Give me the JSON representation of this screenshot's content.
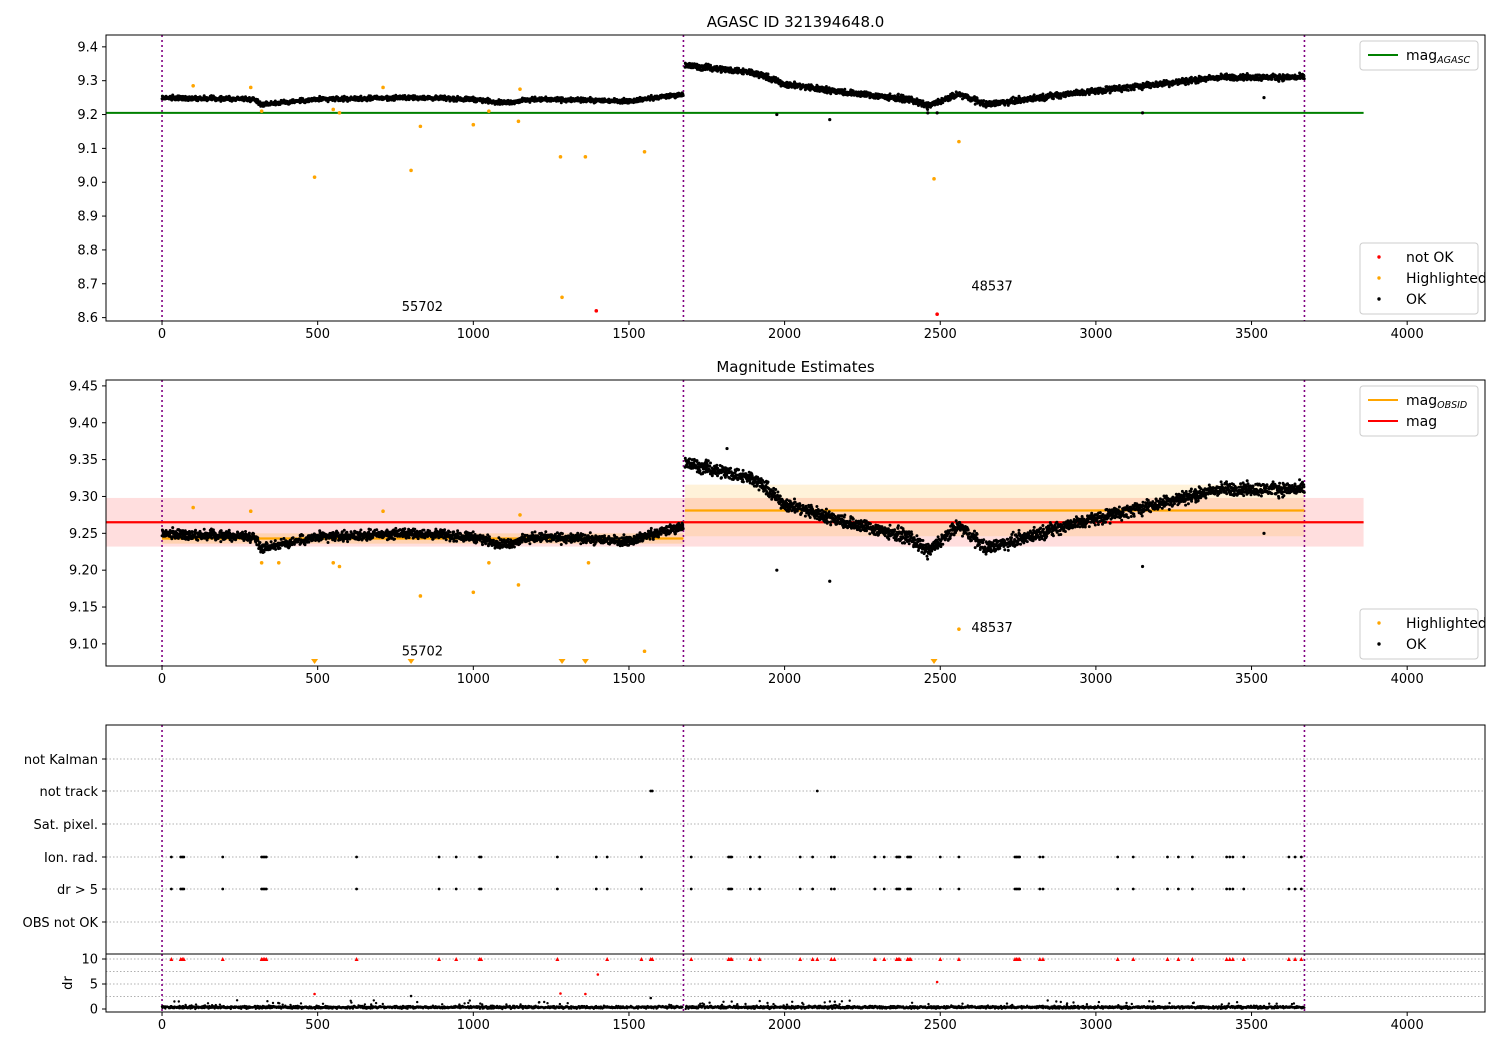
{
  "chart_data": [
    {
      "id": "agasc",
      "type": "scatter",
      "title": "AGASC ID 321394648.0",
      "xlim": [
        -180,
        4250
      ],
      "ylim": [
        8.59,
        9.435
      ],
      "xticks": [
        0,
        500,
        1000,
        1500,
        2000,
        2500,
        3000,
        3500,
        4000
      ],
      "xtick_labels": [
        "0",
        "500",
        "1000",
        "1500",
        "2000",
        "2500",
        "3000",
        "3500",
        "4000"
      ],
      "yticks": [
        8.6,
        8.7,
        8.8,
        8.9,
        9.0,
        9.1,
        9.2,
        9.3,
        9.4
      ],
      "ytick_labels": [
        "8.6",
        "8.7",
        "8.8",
        "8.9",
        "9.0",
        "9.1",
        "9.2",
        "9.3",
        "9.4"
      ],
      "vlines": [
        0,
        1675,
        3670
      ],
      "hlines": [
        {
          "y": 9.205,
          "x0": -180,
          "x1": 3860,
          "color": "#008000",
          "label": "mag_AGASC"
        }
      ],
      "annotations": [
        {
          "text": "55702",
          "x": 770,
          "y": 8.62
        },
        {
          "text": "48537",
          "x": 2600,
          "y": 8.68
        }
      ],
      "legends": [
        {
          "position": "top-right",
          "entries": [
            {
              "type": "line",
              "color": "#008000",
              "label": "mag",
              "sub": "AGASC"
            }
          ]
        },
        {
          "position": "bottom-right",
          "entries": [
            {
              "type": "dot",
              "color": "#ff0000",
              "label": "not OK"
            },
            {
              "type": "dot",
              "color": "#ffa500",
              "label": "Highlighted"
            },
            {
              "type": "dot",
              "color": "#000000",
              "label": "OK"
            }
          ]
        }
      ],
      "ok_segments": [
        {
          "x0": 0,
          "x1": 1675,
          "base": [
            [
              0,
              9.25
            ],
            [
              300,
              9.245
            ],
            [
              320,
              9.23
            ],
            [
              500,
              9.245
            ],
            [
              800,
              9.25
            ],
            [
              1000,
              9.245
            ],
            [
              1100,
              9.235
            ],
            [
              1200,
              9.245
            ],
            [
              1500,
              9.24
            ],
            [
              1675,
              9.26
            ]
          ],
          "noise": 0.01
        },
        {
          "x0": 1680,
          "x1": 3670,
          "base": [
            [
              1680,
              9.345
            ],
            [
              1900,
              9.325
            ],
            [
              2000,
              9.29
            ],
            [
              2200,
              9.265
            ],
            [
              2400,
              9.245
            ],
            [
              2460,
              9.225
            ],
            [
              2560,
              9.26
            ],
            [
              2650,
              9.23
            ],
            [
              2900,
              9.26
            ],
            [
              3050,
              9.275
            ],
            [
              3200,
              9.29
            ],
            [
              3400,
              9.31
            ],
            [
              3670,
              9.31
            ]
          ],
          "noise": 0.014
        }
      ],
      "ok_outliers": [
        [
          1975,
          9.2
        ],
        [
          2145,
          9.185
        ],
        [
          3150,
          9.205
        ],
        [
          3540,
          9.25
        ],
        [
          2460,
          9.205
        ],
        [
          2490,
          9.205
        ]
      ],
      "highlighted_points": [
        [
          100,
          9.285
        ],
        [
          285,
          9.28
        ],
        [
          320,
          9.21
        ],
        [
          490,
          9.015
        ],
        [
          550,
          9.215
        ],
        [
          570,
          9.205
        ],
        [
          710,
          9.28
        ],
        [
          800,
          9.035
        ],
        [
          830,
          9.165
        ],
        [
          1000,
          9.17
        ],
        [
          1050,
          9.21
        ],
        [
          1145,
          9.18
        ],
        [
          1150,
          9.275
        ],
        [
          1280,
          9.075
        ],
        [
          1360,
          9.075
        ],
        [
          1550,
          9.09
        ],
        [
          1285,
          8.66
        ],
        [
          2480,
          9.01
        ],
        [
          2560,
          9.12
        ]
      ],
      "notok_points": [
        [
          1395,
          8.62
        ],
        [
          2490,
          8.61
        ]
      ]
    },
    {
      "id": "mag",
      "type": "scatter",
      "title": "Magnitude Estimates",
      "xlim": [
        -180,
        4250
      ],
      "ylim": [
        9.07,
        9.458
      ],
      "xticks": [
        0,
        500,
        1000,
        1500,
        2000,
        2500,
        3000,
        3500,
        4000
      ],
      "xtick_labels": [
        "0",
        "500",
        "1000",
        "1500",
        "2000",
        "2500",
        "3000",
        "3500",
        "4000"
      ],
      "yticks": [
        9.1,
        9.15,
        9.2,
        9.25,
        9.3,
        9.35,
        9.4,
        9.45
      ],
      "ytick_labels": [
        "9.10",
        "9.15",
        "9.20",
        "9.25",
        "9.30",
        "9.35",
        "9.40",
        "9.45"
      ],
      "vlines": [
        0,
        1675,
        3670
      ],
      "bands": [
        {
          "x0": -180,
          "x1": 3860,
          "y0": 9.232,
          "y1": 9.298,
          "color": "#ff0000",
          "opacity": 0.13
        },
        {
          "x0": 0,
          "x1": 1675,
          "y0": 9.236,
          "y1": 9.25,
          "color": "#ffa500",
          "opacity": 0.2
        },
        {
          "x0": 1680,
          "x1": 3670,
          "y0": 9.246,
          "y1": 9.316,
          "color": "#ffa500",
          "opacity": 0.15
        }
      ],
      "hlines": [
        {
          "y": 9.265,
          "x0": -180,
          "x1": 3860,
          "color": "#ff0000",
          "label": "mag"
        },
        {
          "y": 9.243,
          "x0": 0,
          "x1": 1675,
          "color": "#ffa500",
          "label": "mag_OBSID"
        },
        {
          "y": 9.281,
          "x0": 1680,
          "x1": 3670,
          "color": "#ffa500",
          "label": "mag_OBSID"
        }
      ],
      "annotations": [
        {
          "text": "55702",
          "x": 770,
          "y": 9.084
        },
        {
          "text": "48537",
          "x": 2600,
          "y": 9.116
        }
      ],
      "legends": [
        {
          "position": "top-right",
          "entries": [
            {
              "type": "line",
              "color": "#ffa500",
              "label": "mag",
              "sub": "OBSID"
            },
            {
              "type": "line",
              "color": "#ff0000",
              "label": "mag"
            }
          ]
        },
        {
          "position": "bottom-right",
          "entries": [
            {
              "type": "dot",
              "color": "#ffa500",
              "label": "Highlighted"
            },
            {
              "type": "dot",
              "color": "#000000",
              "label": "OK"
            }
          ]
        }
      ],
      "ok_segments": [
        {
          "x0": 0,
          "x1": 1675,
          "base": [
            [
              0,
              9.25
            ],
            [
              300,
              9.245
            ],
            [
              320,
              9.23
            ],
            [
              500,
              9.245
            ],
            [
              800,
              9.25
            ],
            [
              1000,
              9.245
            ],
            [
              1100,
              9.235
            ],
            [
              1200,
              9.245
            ],
            [
              1500,
              9.24
            ],
            [
              1675,
              9.26
            ]
          ],
          "noise": 0.01
        },
        {
          "x0": 1680,
          "x1": 3670,
          "base": [
            [
              1680,
              9.345
            ],
            [
              1900,
              9.325
            ],
            [
              2000,
              9.29
            ],
            [
              2200,
              9.265
            ],
            [
              2400,
              9.245
            ],
            [
              2460,
              9.225
            ],
            [
              2560,
              9.26
            ],
            [
              2650,
              9.23
            ],
            [
              2900,
              9.26
            ],
            [
              3050,
              9.275
            ],
            [
              3200,
              9.29
            ],
            [
              3400,
              9.31
            ],
            [
              3670,
              9.31
            ]
          ],
          "noise": 0.014
        }
      ],
      "ok_outliers": [
        [
          1975,
          9.2
        ],
        [
          2145,
          9.185
        ],
        [
          3150,
          9.205
        ],
        [
          3540,
          9.25
        ],
        [
          1815,
          9.365
        ]
      ],
      "highlighted_points": [
        [
          100,
          9.285
        ],
        [
          285,
          9.28
        ],
        [
          320,
          9.21
        ],
        [
          375,
          9.21
        ],
        [
          550,
          9.21
        ],
        [
          570,
          9.205
        ],
        [
          710,
          9.28
        ],
        [
          830,
          9.165
        ],
        [
          1000,
          9.17
        ],
        [
          1050,
          9.21
        ],
        [
          1145,
          9.18
        ],
        [
          1150,
          9.275
        ],
        [
          1370,
          9.21
        ],
        [
          1550,
          9.09
        ],
        [
          2560,
          9.12
        ]
      ],
      "offscale_points": [
        490,
        800,
        1285,
        1360,
        2480
      ]
    },
    {
      "id": "flags",
      "type": "scatter",
      "title": "",
      "xlim": [
        -180,
        4250
      ],
      "categories": [
        "not Kalman",
        "not track",
        "Sat. pixel.",
        "Ion. rad.",
        "dr > 5",
        "OBS not OK"
      ],
      "vlines": [
        0,
        1675,
        3670
      ],
      "ion_rad_x": [
        30,
        60,
        65,
        70,
        195,
        320,
        325,
        330,
        335,
        625,
        890,
        945,
        1020,
        1025,
        1270,
        1395,
        1430,
        1540,
        1700,
        1820,
        1825,
        1830,
        1890,
        1920,
        2050,
        2090,
        2150,
        2160,
        2290,
        2320,
        2360,
        2365,
        2370,
        2395,
        2400,
        2405,
        2500,
        2560,
        2740,
        2745,
        2750,
        2755,
        2820,
        2830,
        3070,
        3120,
        3230,
        3265,
        3310,
        3420,
        3430,
        3440,
        3475,
        3620,
        3640,
        3660
      ],
      "dr5_x": [
        30,
        60,
        65,
        70,
        195,
        320,
        325,
        330,
        335,
        625,
        890,
        945,
        1020,
        1025,
        1270,
        1395,
        1430,
        1540,
        1700,
        1820,
        1825,
        1830,
        1890,
        1920,
        2050,
        2090,
        2150,
        2160,
        2290,
        2320,
        2360,
        2365,
        2370,
        2395,
        2400,
        2405,
        2500,
        2560,
        2740,
        2745,
        2750,
        2755,
        2820,
        2830,
        3070,
        3120,
        3230,
        3265,
        3310,
        3420,
        3430,
        3440,
        3475,
        3620,
        3640,
        3660
      ],
      "not_track_x": [
        1570,
        1575,
        2105
      ]
    },
    {
      "id": "dr",
      "type": "scatter",
      "title": "",
      "ylabel": "dr",
      "xlim": [
        -180,
        4250
      ],
      "ylim": [
        -0.6,
        11
      ],
      "xticks": [
        0,
        500,
        1000,
        1500,
        2000,
        2500,
        3000,
        3500,
        4000
      ],
      "xtick_labels": [
        "0",
        "500",
        "1000",
        "1500",
        "2000",
        "2500",
        "3000",
        "3500",
        "4000"
      ],
      "yticks": [
        0,
        5,
        10
      ],
      "ytick_labels": [
        "0",
        "5",
        "10"
      ],
      "vlines": [
        0,
        1675,
        3670
      ],
      "capped_x": [
        30,
        60,
        65,
        70,
        195,
        320,
        325,
        330,
        335,
        625,
        890,
        945,
        1020,
        1025,
        1270,
        1430,
        1540,
        1570,
        1575,
        1700,
        1820,
        1825,
        1830,
        1890,
        1920,
        2050,
        2090,
        2105,
        2150,
        2160,
        2290,
        2320,
        2360,
        2365,
        2370,
        2395,
        2400,
        2405,
        2500,
        2560,
        2740,
        2745,
        2750,
        2755,
        2820,
        2830,
        3070,
        3120,
        3230,
        3265,
        3310,
        3420,
        3430,
        3440,
        3475,
        3620,
        3640,
        3660
      ],
      "red_points": [
        [
          490,
          3.0
        ],
        [
          1280,
          3.1
        ],
        [
          1360,
          3.0
        ],
        [
          1400,
          6.9
        ],
        [
          2490,
          5.4
        ]
      ],
      "black_outliers": [
        [
          800,
          2.6
        ],
        [
          1570,
          2.2
        ]
      ],
      "base_noise": 0.6
    }
  ]
}
